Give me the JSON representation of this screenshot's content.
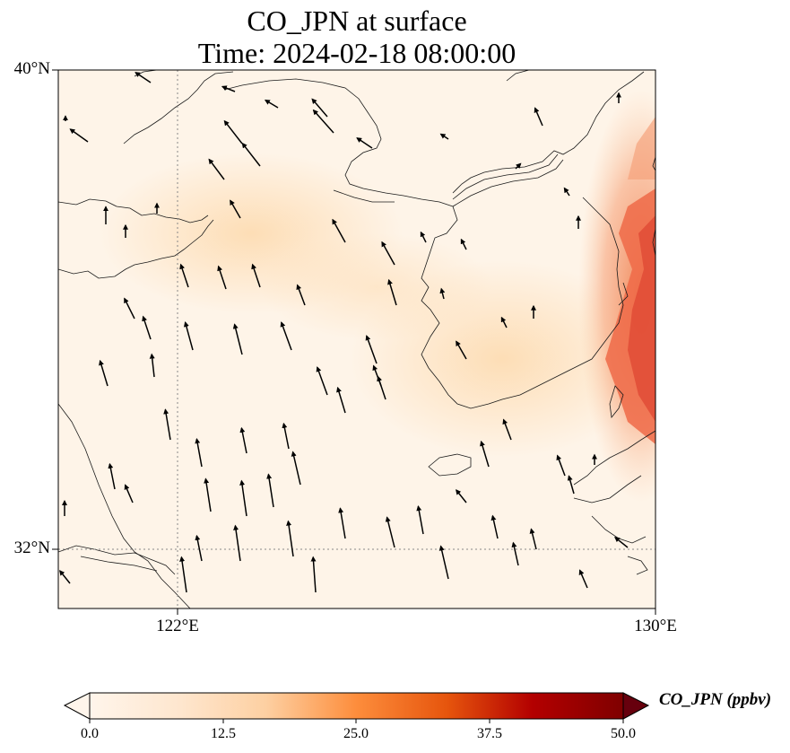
{
  "title": {
    "line1": "CO_JPN at surface",
    "line2": "Time: 2024-02-18 08:00:00"
  },
  "axes": {
    "lat_labels": [
      "40°N",
      "32°N"
    ],
    "lon_labels": [
      "122°E",
      "130°E"
    ],
    "gridlines": "dotted"
  },
  "colorbar": {
    "label": "CO_JPN (ppbv)",
    "ticks": [
      "0.0",
      "12.5",
      "25.0",
      "37.5",
      "50.0"
    ],
    "extend": "both",
    "colormap_stops": [
      "#fff5eb",
      "#fdd9b3",
      "#fdae6b",
      "#f16913",
      "#d94801",
      "#a50f15",
      "#67000d"
    ]
  },
  "map": {
    "extent": {
      "lon": [
        120,
        130
      ],
      "lat": [
        31,
        40
      ]
    },
    "base_color": "#fef2e4",
    "plume_color": "#e8533a"
  }
}
